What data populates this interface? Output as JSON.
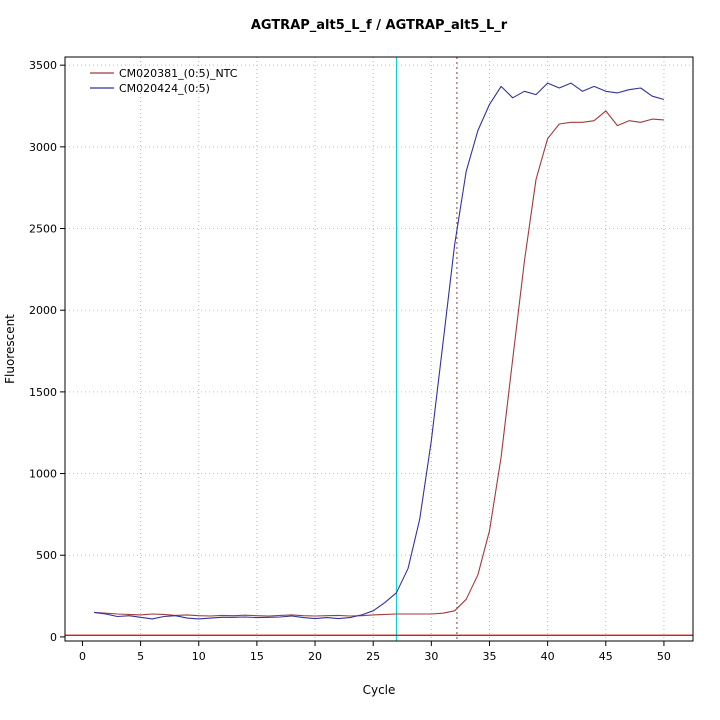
{
  "chart_data": {
    "type": "line",
    "title": "AGTRAP_alt5_L_f / AGTRAP_alt5_L_r",
    "xlabel": "Cycle",
    "ylabel": "Fluorescent",
    "xlim": [
      0,
      50
    ],
    "ylim": [
      0,
      3500
    ],
    "xticks": [
      0,
      5,
      10,
      15,
      20,
      25,
      30,
      35,
      40,
      45,
      50
    ],
    "yticks": [
      0,
      500,
      1000,
      1500,
      2000,
      2500,
      3000,
      3500
    ],
    "grid": true,
    "legend_position": "top-left",
    "x": [
      1,
      2,
      3,
      4,
      5,
      6,
      7,
      8,
      9,
      10,
      11,
      12,
      13,
      14,
      15,
      16,
      17,
      18,
      19,
      20,
      21,
      22,
      23,
      24,
      25,
      26,
      27,
      28,
      29,
      30,
      31,
      32,
      33,
      34,
      35,
      36,
      37,
      38,
      39,
      40,
      41,
      42,
      43,
      44,
      45,
      46,
      47,
      48,
      49,
      50
    ],
    "series": [
      {
        "name": "CM020381_(0:5)_NTC",
        "color": "#a23b3b",
        "values": [
          150,
          145,
          140,
          138,
          135,
          140,
          138,
          132,
          135,
          130,
          128,
          132,
          130,
          133,
          130,
          128,
          132,
          135,
          130,
          128,
          130,
          132,
          128,
          130,
          135,
          138,
          140,
          140,
          140,
          140,
          145,
          160,
          230,
          380,
          650,
          1100,
          1700,
          2300,
          2800,
          3050,
          3140,
          3150,
          3150,
          3160,
          3220,
          3130,
          3160,
          3150,
          3170,
          3165
        ]
      },
      {
        "name": "CM020424_(0:5)",
        "color": "#32329f",
        "values": [
          150,
          140,
          125,
          130,
          120,
          110,
          125,
          130,
          115,
          110,
          115,
          120,
          120,
          122,
          118,
          120,
          122,
          128,
          118,
          112,
          118,
          112,
          118,
          135,
          160,
          210,
          270,
          420,
          720,
          1200,
          1800,
          2400,
          2850,
          3100,
          3260,
          3370,
          3300,
          3340,
          3320,
          3390,
          3360,
          3390,
          3340,
          3370,
          3340,
          3330,
          3350,
          3360,
          3310,
          3290
        ]
      }
    ],
    "vlines": [
      {
        "x": 27,
        "color": "#00cdcd",
        "style": "solid",
        "label": "ct-marker-cyan"
      },
      {
        "x": 32.2,
        "color": "#8b3a3a",
        "style": "dotted",
        "label": "ct-marker-red"
      }
    ],
    "hlines": [
      {
        "y": 10,
        "color": "#cc0000",
        "style": "solid",
        "label": "threshold"
      }
    ]
  }
}
